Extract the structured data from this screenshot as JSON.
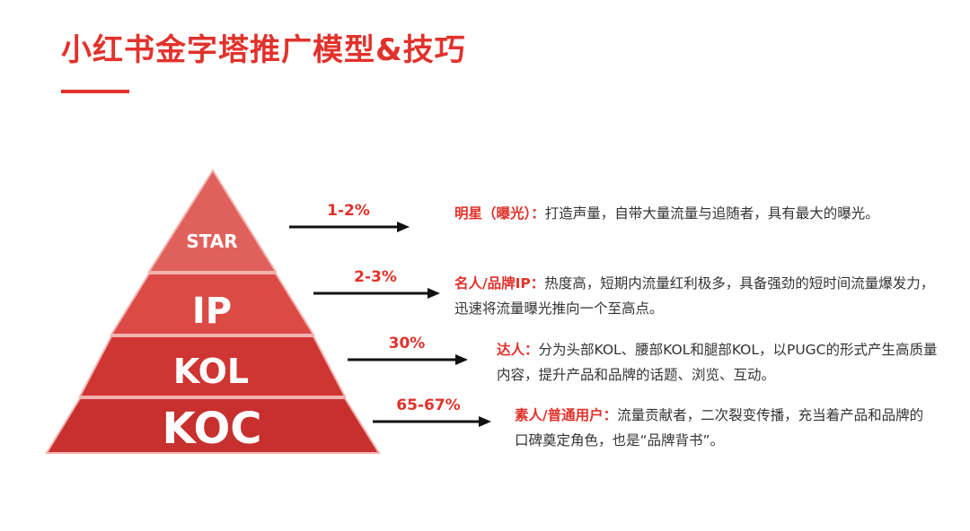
{
  "header": {
    "title": "小红书金字塔推广模型&技巧"
  },
  "pyramid": {
    "levels": [
      {
        "label": "STAR",
        "percent": "1-2%",
        "lead": "明星（曝光）：",
        "text": "打造声量，自带大量流量与追随者，具有最大的曝光。"
      },
      {
        "label": "IP",
        "percent": "2-3%",
        "lead": "名人/品牌IP：",
        "text": "热度高，短期内流量红利极多，具备强劲的短时间流量爆发力，迅速将流量曝光推向一个至高点。"
      },
      {
        "label": "KOL",
        "percent": "30%",
        "lead": "达人：",
        "text": "分为头部KOL、腰部KOL和腿部KOL，以PUGC的形式产生高质量内容，提升产品和品牌的话题、浏览、互动。"
      },
      {
        "label": "KOC",
        "percent": "65-67%",
        "lead": "素人/普通用户：",
        "text": "流量贡献者，二次裂变传播，充当着产品和品牌的口碑奠定角色，也是“品牌背书”。"
      }
    ]
  },
  "colors": {
    "accent": "#e1322b",
    "tier_star": "#e0615c",
    "tier_ip": "#dc4a46",
    "tier_kol": "#cf3532",
    "tier_koc": "#c7302e"
  }
}
